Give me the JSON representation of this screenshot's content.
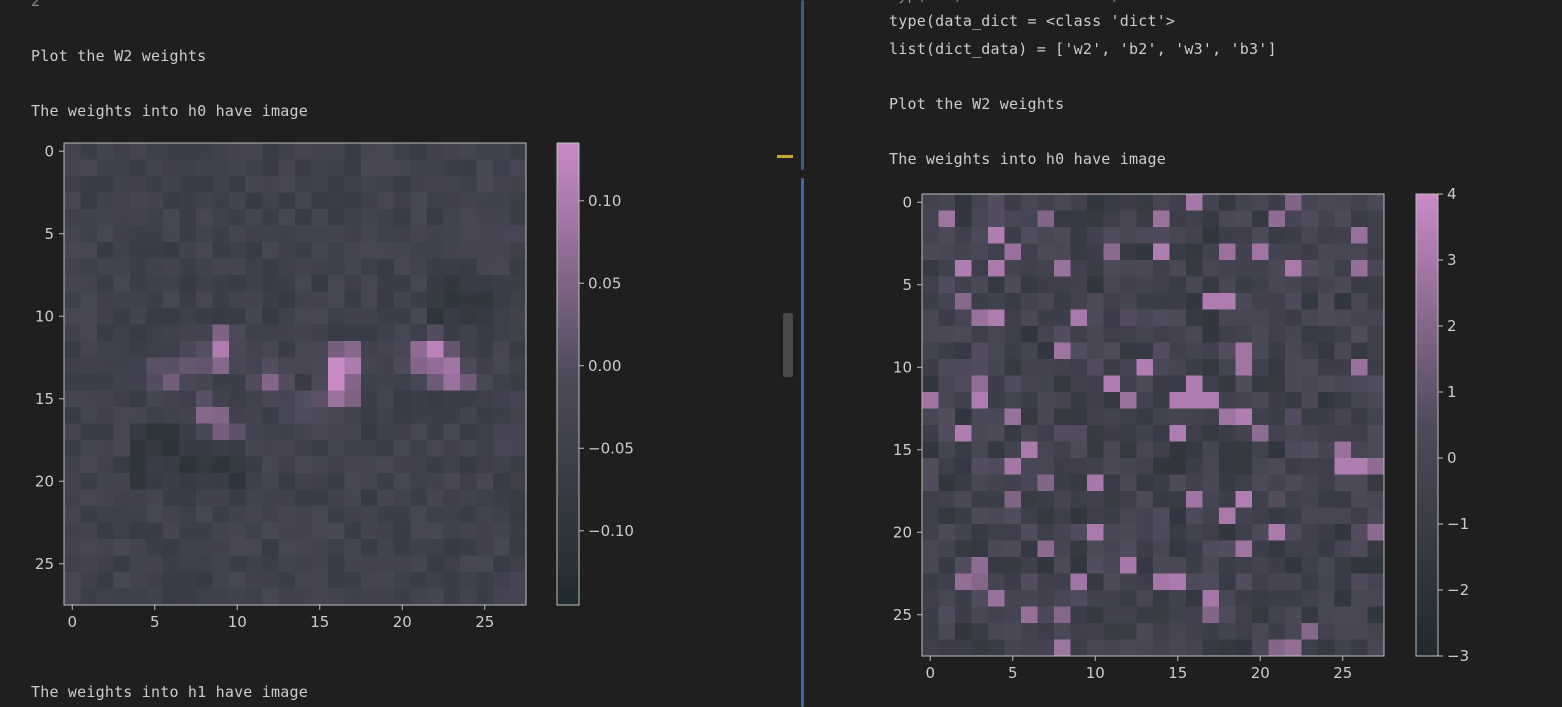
{
  "left": {
    "cut_text": "2",
    "heading": "Plot the W2 weights",
    "caption_h0": "The weights into h0 have image",
    "caption_h1": "The weights into h1 have image",
    "plot": {
      "x_ticks": [
        "0",
        "5",
        "10",
        "15",
        "20",
        "25"
      ],
      "y_ticks": [
        "0",
        "5",
        "10",
        "15",
        "20",
        "25"
      ],
      "colorbar_ticks": [
        "0.10",
        "0.05",
        "0.00",
        "−0.05",
        "−0.10"
      ]
    }
  },
  "right": {
    "line_type": "type(data_dict = <class 'dict'>",
    "line_list": "list(dict_data) = ['w2', 'b2', 'w3', 'b3']",
    "heading": "Plot the W2 weights",
    "caption_h0": "The weights into h0 have image",
    "plot": {
      "x_ticks": [
        "0",
        "5",
        "10",
        "15",
        "20",
        "25"
      ],
      "y_ticks": [
        "0",
        "5",
        "10",
        "15",
        "20",
        "25"
      ],
      "colorbar_ticks": [
        "4",
        "3",
        "2",
        "1",
        "0",
        "−1",
        "−2",
        "−3"
      ]
    }
  },
  "chart_data": [
    {
      "type": "heatmap",
      "title": "",
      "grid_size": [
        28,
        28
      ],
      "xlim": [
        0,
        27
      ],
      "ylim": [
        27,
        0
      ],
      "colorbar": {
        "min": -0.145,
        "max": 0.135,
        "ticks": [
          0.1,
          0.05,
          0.0,
          -0.05,
          -0.1
        ]
      },
      "colors": {
        "low": "#1f2a2d",
        "mid": "#4d4a5a",
        "high": "#c98ac6"
      },
      "description_values": "weights into h0 (28x28), pink blob around rows 11-17, cols 5-23"
    },
    {
      "type": "heatmap",
      "title": "",
      "grid_size": [
        28,
        28
      ],
      "xlim": [
        0,
        27
      ],
      "ylim": [
        27,
        0
      ],
      "colorbar": {
        "min": -3,
        "max": 4,
        "ticks": [
          4,
          3,
          2,
          1,
          0,
          -1,
          -2,
          -3
        ]
      },
      "colors": {
        "low": "#20292c",
        "mid": "#4d4a5a",
        "high": "#c98ac6"
      }
    }
  ]
}
